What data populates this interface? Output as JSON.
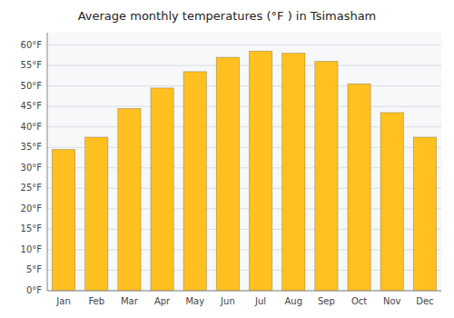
{
  "chart_data": {
    "type": "bar",
    "title": "Average monthly temperatures (°F ) in Tsimasham",
    "categories": [
      "Jan",
      "Feb",
      "Mar",
      "Apr",
      "May",
      "Jun",
      "Jul",
      "Aug",
      "Sep",
      "Oct",
      "Nov",
      "Dec"
    ],
    "values": [
      34.5,
      37.5,
      44.5,
      49.5,
      53.5,
      57.0,
      58.5,
      58.0,
      56.0,
      50.5,
      43.5,
      37.5
    ],
    "color": "#FFC020",
    "ylim": [
      0,
      63
    ],
    "yticks": [
      {
        "value": 0,
        "label": "0°F"
      },
      {
        "value": 5,
        "label": "5°F"
      },
      {
        "value": 10,
        "label": "10°F"
      },
      {
        "value": 15,
        "label": "15°F"
      },
      {
        "value": 20,
        "label": "20°F"
      },
      {
        "value": 25,
        "label": "25°F"
      },
      {
        "value": 30,
        "label": "30°F"
      },
      {
        "value": 35,
        "label": "35°F"
      },
      {
        "value": 40,
        "label": "40°F"
      },
      {
        "value": 45,
        "label": "45°F"
      },
      {
        "value": 50,
        "label": "50°F"
      },
      {
        "value": 55,
        "label": "55°F"
      },
      {
        "value": 60,
        "label": "60°F"
      }
    ],
    "grid": true
  }
}
